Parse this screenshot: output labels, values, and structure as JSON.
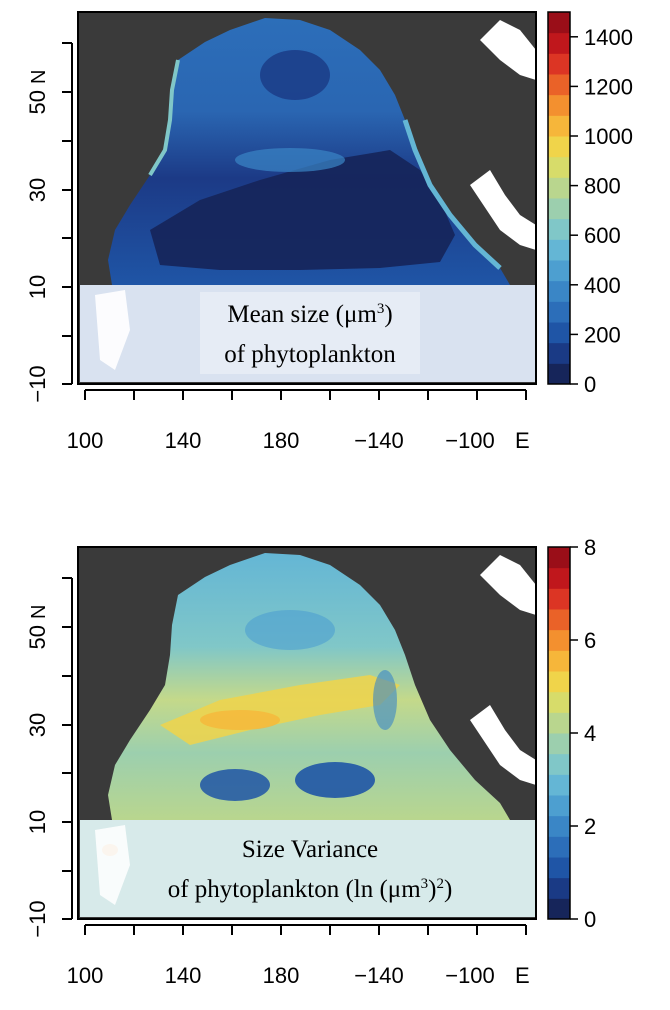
{
  "maps": [
    {
      "id": "mean-size",
      "label_line1": "Mean size (μm",
      "label_line1_sup": "3",
      "label_line1_end": ")",
      "label_line2": "of phytoplankton",
      "x_ticks": [
        "100",
        "140",
        "180",
        "−140",
        "−100"
      ],
      "x_suffix": "E",
      "y_ticks": [
        "50",
        "30",
        "10",
        "−10"
      ],
      "y_suffix": "N",
      "colorbar_ticks": [
        "1400",
        "1200",
        "1000",
        "800",
        "600",
        "400",
        "200",
        "0"
      ],
      "colorbar_min": 0,
      "colorbar_max": 1500
    },
    {
      "id": "size-variance",
      "label_line1": "Size Variance",
      "label_line2": "of phytoplankton (ln (μm",
      "label_line2_sup": "3",
      "label_line2_mid": ")",
      "label_line2_sup2": "2",
      "label_line2_end": ")",
      "x_ticks": [
        "100",
        "140",
        "180",
        "−140",
        "−100"
      ],
      "x_suffix": "E",
      "y_ticks": [
        "50",
        "30",
        "10",
        "−10"
      ],
      "y_suffix": "N",
      "colorbar_ticks": [
        "8",
        "6",
        "4",
        "2",
        "0"
      ],
      "colorbar_min": 0,
      "colorbar_max": 8
    }
  ],
  "colors": {
    "land": "#3a3a3a",
    "colorscale": [
      "#16255a",
      "#1a3a85",
      "#1f55a6",
      "#2c6eb9",
      "#3a86c6",
      "#4d9fd0",
      "#64b6d5",
      "#80c7c8",
      "#9ccfae",
      "#b9d68e",
      "#d7dc6a",
      "#f0d44a",
      "#f6b63a",
      "#f3902f",
      "#ea6228",
      "#dc3524",
      "#c0171c",
      "#9a0e18"
    ]
  }
}
